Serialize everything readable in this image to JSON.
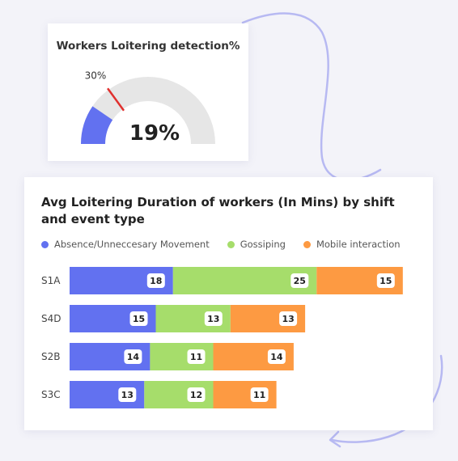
{
  "colors": {
    "absence": "#6271f0",
    "gossip": "#a6dd6b",
    "mobile": "#fd9a42",
    "gauge_track": "#e6e6e6",
    "threshold": "#e0302e"
  },
  "chart_data": [
    {
      "type": "gauge",
      "title": "Workers Loitering detection%",
      "value": 19,
      "value_label": "19%",
      "threshold": 30,
      "threshold_label": "30%",
      "range": [
        0,
        100
      ]
    },
    {
      "type": "bar",
      "orientation": "horizontal",
      "stacked": true,
      "title": "Avg Loitering Duration of workers (In Mins) by shift and event type",
      "categories": [
        "S1A",
        "S4D",
        "S2B",
        "S3C"
      ],
      "series": [
        {
          "name": "Absence/Unneccesary Movement",
          "values": [
            18,
            15,
            14,
            13
          ],
          "color": "#6271f0"
        },
        {
          "name": "Gossiping",
          "values": [
            25,
            13,
            11,
            12
          ],
          "color": "#a6dd6b"
        },
        {
          "name": "Mobile interaction",
          "values": [
            15,
            13,
            14,
            11
          ],
          "color": "#fd9a42"
        }
      ],
      "legend_position": "top-left",
      "grid": false,
      "data_labels": true
    }
  ]
}
